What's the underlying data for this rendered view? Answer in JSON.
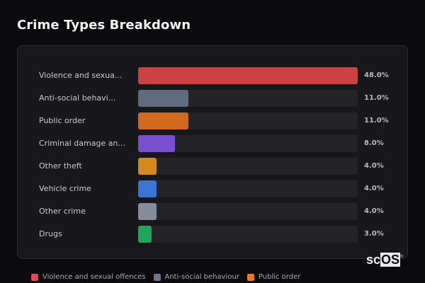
{
  "header": {
    "title": "Crime Types Breakdown"
  },
  "chart_data": {
    "type": "bar",
    "orientation": "horizontal",
    "title": "Crime Types Breakdown",
    "xlabel": "",
    "ylabel": "",
    "xlim": [
      0,
      48
    ],
    "grid": false,
    "legend_position": "bottom",
    "categories": [
      "Violence and sexual offences",
      "Anti-social behaviour",
      "Public order",
      "Criminal damage and arson",
      "Other theft",
      "Vehicle crime",
      "Other crime",
      "Drugs"
    ],
    "display_labels": [
      "Violence and sexua...",
      "Anti-social behavi...",
      "Public order",
      "Criminal damage an...",
      "Other theft",
      "Vehicle crime",
      "Other crime",
      "Drugs"
    ],
    "values": [
      48.0,
      11.0,
      11.0,
      8.0,
      4.0,
      4.0,
      4.0,
      3.0
    ],
    "value_labels": [
      "48.0%",
      "11.0%",
      "11.0%",
      "8.0%",
      "4.0%",
      "4.0%",
      "4.0%",
      "3.0%"
    ],
    "colors": [
      "#cc4141",
      "#5f6b7e",
      "#d2691e",
      "#7a4fcf",
      "#d4891a",
      "#3a75d6",
      "#858d9c",
      "#1fa65a"
    ]
  },
  "rows": [
    {
      "label": "Violence and sexua...",
      "value": "48.0%",
      "pct": 48.0,
      "color": "#cc4141"
    },
    {
      "label": "Anti-social behavi...",
      "value": "11.0%",
      "pct": 11.0,
      "color": "#5f6b7e"
    },
    {
      "label": "Public order",
      "value": "11.0%",
      "pct": 11.0,
      "color": "#d2691e"
    },
    {
      "label": "Criminal damage an...",
      "value": "8.0%",
      "pct": 8.0,
      "color": "#7a4fcf"
    },
    {
      "label": "Other theft",
      "value": "4.0%",
      "pct": 4.0,
      "color": "#d4891a"
    },
    {
      "label": "Vehicle crime",
      "value": "4.0%",
      "pct": 4.0,
      "color": "#3a75d6"
    },
    {
      "label": "Other crime",
      "value": "4.0%",
      "pct": 4.0,
      "color": "#858d9c"
    },
    {
      "label": "Drugs",
      "value": "3.0%",
      "pct": 3.0,
      "color": "#1fa65a"
    }
  ],
  "legend": [
    {
      "label": "Violence and sexual offences",
      "color": "#e5484d"
    },
    {
      "label": "Anti-social behaviour",
      "color": "#6b778c"
    },
    {
      "label": "Public order",
      "color": "#f07c22"
    }
  ],
  "logo": {
    "prefix": "sc",
    "boxed": "OS",
    "mark": "®"
  }
}
